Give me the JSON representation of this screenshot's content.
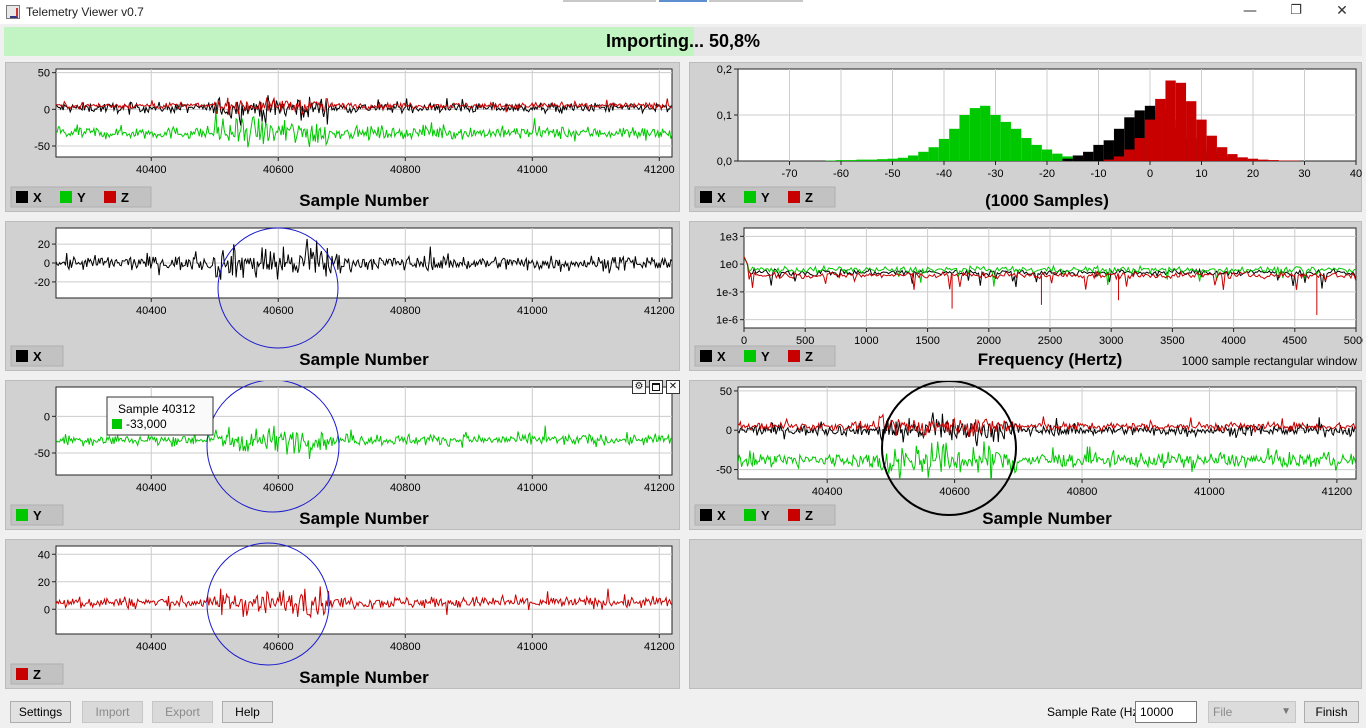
{
  "window": {
    "title": "Telemetry Viewer v0.7",
    "minimize_glyph": "—",
    "restore_glyph": "❐",
    "close_glyph": "✕"
  },
  "progress": {
    "text": "Importing... 50,8%",
    "fraction": 0.508
  },
  "colors": {
    "x": "#000000",
    "y": "#00c800",
    "z": "#c80000",
    "grid": "#cccccc",
    "highlight_ring": "#1a1acc"
  },
  "series_names": {
    "x": "X",
    "y": "Y",
    "z": "Z"
  },
  "tooltip": {
    "title": "Sample 40312",
    "value": "-33,000"
  },
  "controls_icons": [
    "gear-icon",
    "maximize-icon",
    "close-icon"
  ],
  "chart_data": [
    {
      "id": "xyz_time",
      "type": "line",
      "xlabel": "Sample Number",
      "xlim": [
        40250,
        41220
      ],
      "xticks": [
        40400,
        40600,
        40800,
        41000,
        41200
      ],
      "ylim": [
        -65,
        55
      ],
      "yticks": [
        50,
        0,
        -50
      ],
      "series": [
        {
          "key": "x",
          "name": "X",
          "center": 2,
          "amp": 8
        },
        {
          "key": "y",
          "name": "Y",
          "center": -32,
          "amp": 10
        },
        {
          "key": "z",
          "name": "Z",
          "center": 5,
          "amp": 5
        }
      ],
      "burst": [
        40500,
        40680
      ]
    },
    {
      "id": "histogram",
      "type": "bar",
      "xlabel": "(1000 Samples)",
      "xlim": [
        -80,
        40
      ],
      "xticks": [
        -70,
        -60,
        -50,
        -40,
        -30,
        -20,
        -10,
        0,
        10,
        20,
        30,
        40
      ],
      "ylim": [
        0,
        0.2
      ],
      "yticks": [
        "0,2",
        "0,1",
        "0,0"
      ],
      "series": [
        {
          "key": "y",
          "name": "Y",
          "bins": [
            [
              -62,
              0.001
            ],
            [
              -60,
              0.002
            ],
            [
              -58,
              0.002
            ],
            [
              -56,
              0.003
            ],
            [
              -54,
              0.003
            ],
            [
              -52,
              0.004
            ],
            [
              -50,
              0.005
            ],
            [
              -48,
              0.007
            ],
            [
              -46,
              0.012
            ],
            [
              -44,
              0.02
            ],
            [
              -42,
              0.03
            ],
            [
              -40,
              0.048
            ],
            [
              -38,
              0.07
            ],
            [
              -36,
              0.1
            ],
            [
              -34,
              0.115
            ],
            [
              -32,
              0.12
            ],
            [
              -30,
              0.1
            ],
            [
              -28,
              0.085
            ],
            [
              -26,
              0.07
            ],
            [
              -24,
              0.05
            ],
            [
              -22,
              0.035
            ],
            [
              -20,
              0.025
            ],
            [
              -18,
              0.016
            ],
            [
              -16,
              0.01
            ],
            [
              -14,
              0.006
            ],
            [
              -12,
              0.003
            ],
            [
              -10,
              0.002
            ]
          ]
        },
        {
          "key": "x",
          "name": "X",
          "bins": [
            [
              -16,
              0.005
            ],
            [
              -14,
              0.012
            ],
            [
              -12,
              0.02
            ],
            [
              -10,
              0.035
            ],
            [
              -8,
              0.045
            ],
            [
              -6,
              0.07
            ],
            [
              -4,
              0.095
            ],
            [
              -2,
              0.11
            ],
            [
              0,
              0.12
            ],
            [
              2,
              0.11
            ],
            [
              4,
              0.09
            ],
            [
              6,
              0.07
            ],
            [
              8,
              0.05
            ],
            [
              10,
              0.03
            ],
            [
              12,
              0.018
            ],
            [
              14,
              0.01
            ],
            [
              16,
              0.006
            ],
            [
              18,
              0.003
            ],
            [
              20,
              0.002
            ]
          ]
        },
        {
          "key": "z",
          "name": "Z",
          "bins": [
            [
              -8,
              0.003
            ],
            [
              -6,
              0.01
            ],
            [
              -4,
              0.025
            ],
            [
              -2,
              0.05
            ],
            [
              0,
              0.09
            ],
            [
              2,
              0.135
            ],
            [
              4,
              0.175
            ],
            [
              6,
              0.17
            ],
            [
              8,
              0.13
            ],
            [
              10,
              0.09
            ],
            [
              12,
              0.055
            ],
            [
              14,
              0.03
            ],
            [
              16,
              0.015
            ],
            [
              18,
              0.008
            ],
            [
              20,
              0.005
            ],
            [
              22,
              0.003
            ],
            [
              24,
              0.002
            ],
            [
              26,
              0.001
            ],
            [
              28,
              0.001
            ]
          ]
        }
      ]
    },
    {
      "id": "x_time",
      "type": "line",
      "xlabel": "Sample Number",
      "xlim": [
        40250,
        41220
      ],
      "xticks": [
        40400,
        40600,
        40800,
        41000,
        41200
      ],
      "ylim": [
        -37,
        37
      ],
      "yticks": [
        20,
        0,
        -20
      ],
      "series": [
        {
          "key": "x",
          "name": "X",
          "center": 0,
          "amp": 9
        }
      ],
      "burst": [
        40500,
        40700
      ]
    },
    {
      "id": "fft",
      "type": "line",
      "xlabel": "Frequency (Hertz)",
      "annotation": "1000 sample rectangular window",
      "xlim": [
        0,
        5000
      ],
      "xticks": [
        0,
        500,
        1000,
        1500,
        2000,
        2500,
        3000,
        3500,
        4000,
        4500,
        5000
      ],
      "ylog": true,
      "ylim": [
        -6.9,
        3.9
      ],
      "yticks": [
        [
          "1e3",
          3
        ],
        [
          "1e0",
          0
        ],
        [
          "1e-3",
          -3
        ],
        [
          "1e-6",
          -6
        ]
      ],
      "series": [
        {
          "key": "x",
          "name": "X",
          "center": -0.9
        },
        {
          "key": "y",
          "name": "Y",
          "center": -0.6
        },
        {
          "key": "z",
          "name": "Z",
          "center": -1.2
        }
      ]
    },
    {
      "id": "y_time",
      "type": "line",
      "xlabel": "Sample Number",
      "xlim": [
        40250,
        41220
      ],
      "xticks": [
        40400,
        40600,
        40800,
        41000,
        41200
      ],
      "ylim": [
        -80,
        40
      ],
      "yticks": [
        0,
        -50
      ],
      "series": [
        {
          "key": "y",
          "name": "Y",
          "center": -32,
          "amp": 9
        }
      ],
      "burst": [
        40500,
        40680
      ]
    },
    {
      "id": "xyz_time_2",
      "type": "line",
      "xlabel": "Sample Number",
      "xlim": [
        40260,
        41230
      ],
      "xticks": [
        40400,
        40600,
        40800,
        41000,
        41200
      ],
      "ylim": [
        -62,
        55
      ],
      "yticks": [
        50,
        0,
        -50
      ],
      "series": [
        {
          "key": "x",
          "name": "X",
          "center": 0,
          "amp": 8
        },
        {
          "key": "y",
          "name": "Y",
          "center": -38,
          "amp": 11
        },
        {
          "key": "z",
          "name": "Z",
          "center": 5,
          "amp": 6
        }
      ],
      "burst": [
        40480,
        40700
      ]
    },
    {
      "id": "z_time",
      "type": "line",
      "xlabel": "Sample Number",
      "xlim": [
        40250,
        41220
      ],
      "xticks": [
        40400,
        40600,
        40800,
        41000,
        41200
      ],
      "ylim": [
        -18,
        46
      ],
      "yticks": [
        40,
        20,
        0
      ],
      "series": [
        {
          "key": "z",
          "name": "Z",
          "center": 5,
          "amp": 5
        }
      ],
      "burst": [
        40500,
        40680
      ]
    }
  ],
  "bottom_bar": {
    "settings": "Settings",
    "import": "Import",
    "export": "Export",
    "help": "Help",
    "sample_rate_label": "Sample Rate (Hz)",
    "sample_rate_value": "10000",
    "port_value": "File",
    "finish": "Finish"
  }
}
